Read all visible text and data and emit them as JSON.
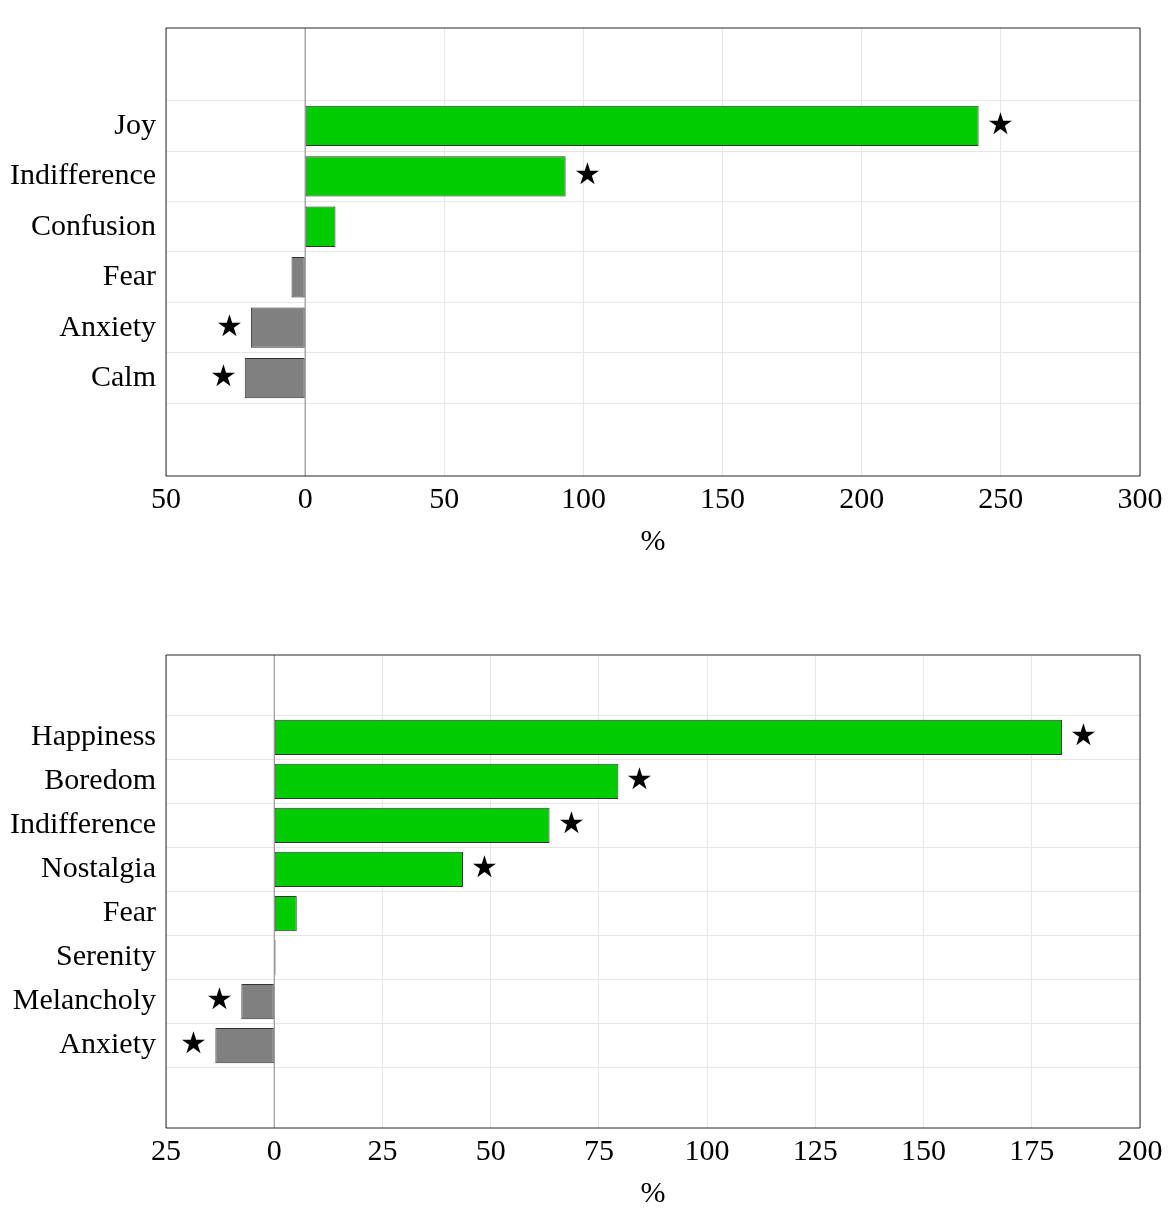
{
  "chart_data": [
    {
      "type": "bar",
      "orientation": "horizontal",
      "xlabel": "%",
      "categories": [
        "Joy",
        "Indifference",
        "Confusion",
        "Fear",
        "Anxiety",
        "Calm"
      ],
      "values": [
        242,
        93.6,
        10.9,
        -4.9,
        -19.5,
        -21.7
      ],
      "colors": [
        "#00cc00",
        "#00cc00",
        "#00cc00",
        "#808080",
        "#808080",
        "#808080"
      ],
      "value_labels": [
        "★",
        "★",
        null,
        null,
        "★",
        "★"
      ],
      "xlim": [
        -50,
        300
      ],
      "xticks": [
        {
          "value": -50,
          "label": "50"
        },
        0,
        50,
        100,
        150,
        200,
        250,
        300
      ],
      "grid": true
    },
    {
      "type": "bar",
      "orientation": "horizontal",
      "xlabel": "%",
      "categories": [
        "Happiness",
        "Boredom",
        "Indifference",
        "Nostalgia",
        "Fear",
        "Serenity",
        "Melancholy",
        "Anxiety"
      ],
      "values": [
        182,
        79.5,
        63.6,
        43.6,
        5.2,
        0.3,
        -7.6,
        -13.6
      ],
      "colors": [
        "#00cc00",
        "#00cc00",
        "#00cc00",
        "#00cc00",
        "#00cc00",
        "#333333",
        "#808080",
        "#808080"
      ],
      "value_labels": [
        "★",
        "★",
        "★",
        "★",
        null,
        null,
        "★",
        "★"
      ],
      "xlim": [
        -25,
        200
      ],
      "xticks": [
        {
          "value": -25,
          "label": "25"
        },
        0,
        25,
        50,
        75,
        100,
        125,
        150,
        175,
        200
      ],
      "grid": true
    }
  ]
}
